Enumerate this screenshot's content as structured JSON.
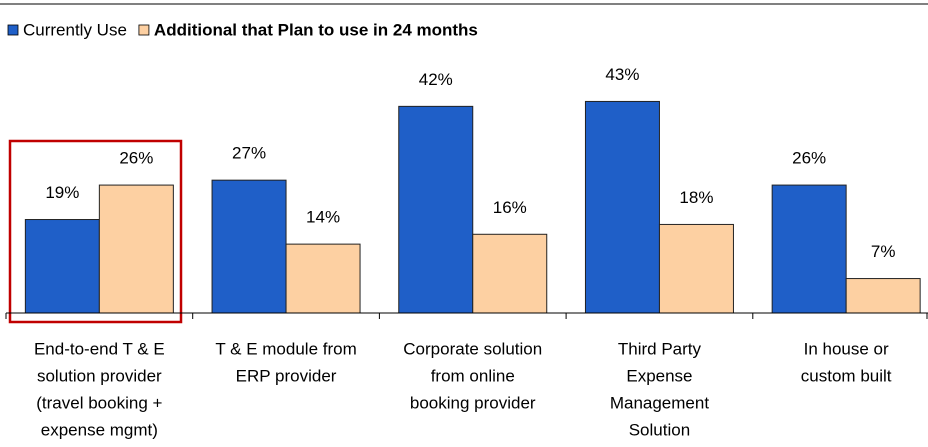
{
  "chart_data": {
    "type": "bar",
    "categories": [
      [
        "End-to-end T & E",
        "solution provider",
        "(travel booking +",
        "expense mgmt)"
      ],
      [
        "T & E module from",
        "ERP provider"
      ],
      [
        "Corporate solution",
        "from online",
        "booking provider"
      ],
      [
        "Third Party",
        "Expense",
        "Management",
        "Solution"
      ],
      [
        "In house or",
        "custom built"
      ]
    ],
    "series": [
      {
        "name": "Currently Use",
        "color": "#1f5fc8",
        "values": [
          19,
          27,
          42,
          43,
          26
        ],
        "value_labels": [
          "19%",
          "27%",
          "42%",
          "43%",
          "26%"
        ]
      },
      {
        "name": "Additional that Plan to use in 24 months",
        "color": "#fdd0a2",
        "values": [
          26,
          14,
          16,
          18,
          7
        ],
        "value_labels": [
          "26%",
          "14%",
          "16%",
          "18%",
          "7%"
        ]
      }
    ],
    "ylim": [
      0,
      50
    ]
  }
}
